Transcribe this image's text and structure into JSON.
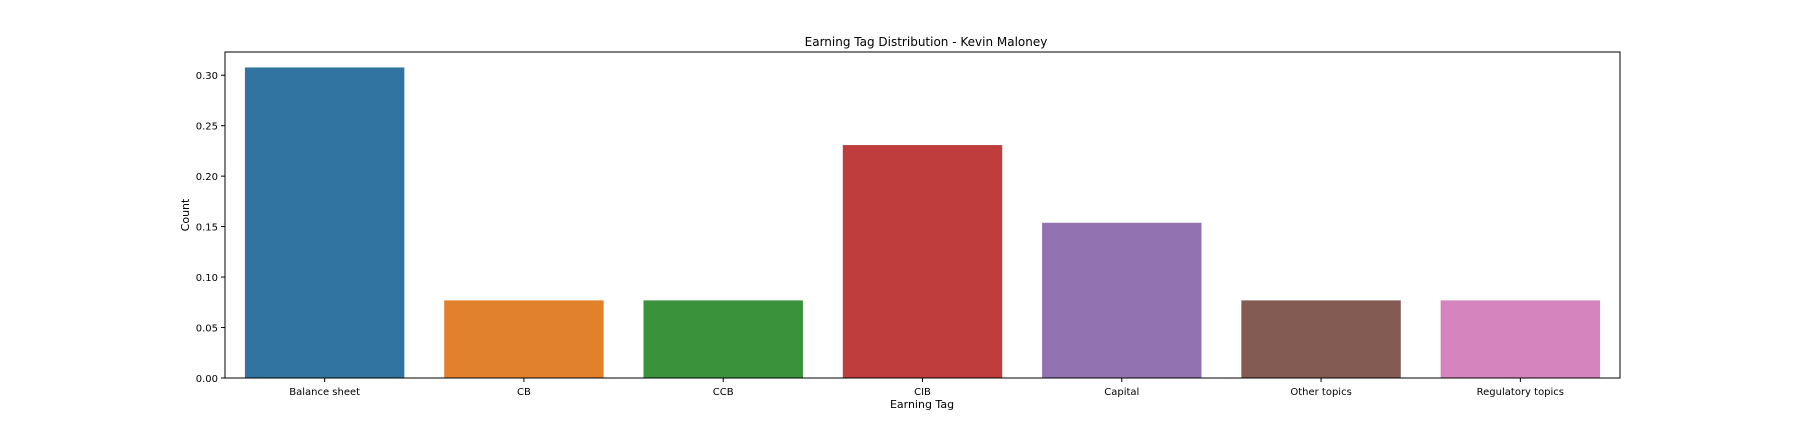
{
  "chart_data": {
    "type": "bar",
    "title": "Earning Tag Distribution - Kevin Maloney",
    "xlabel": "Earning Tag",
    "ylabel": "Count",
    "categories": [
      "Balance sheet",
      "CB",
      "CCB",
      "CIB",
      "Capital",
      "Other topics",
      "Regulatory topics"
    ],
    "values": [
      0.3077,
      0.0769,
      0.0769,
      0.2308,
      0.1538,
      0.0769,
      0.0769
    ],
    "colors": [
      "#3274a1",
      "#e1812c",
      "#3a923a",
      "#c03d3e",
      "#9372b2",
      "#845b53",
      "#d684bd"
    ],
    "ylim": [
      0,
      0.323
    ],
    "yticks": [
      0.0,
      0.05,
      0.1,
      0.15,
      0.2,
      0.25,
      0.3
    ],
    "ytick_labels": [
      "0.00",
      "0.05",
      "0.10",
      "0.15",
      "0.20",
      "0.25",
      "0.30"
    ],
    "grid": false,
    "legend": "none"
  }
}
